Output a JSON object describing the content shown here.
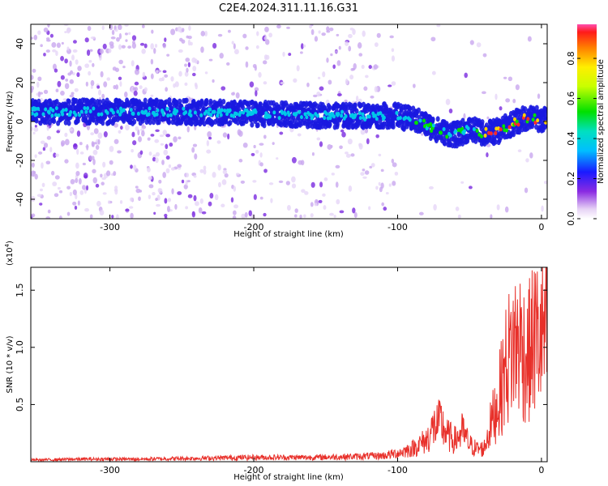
{
  "chart_data": [
    {
      "type": "heatmap",
      "title": "C2E4.2024.311.11.16.G31",
      "xlabel": "Height of straight line (km)",
      "ylabel": "Frequency (Hz)",
      "xlim": [
        -355,
        4
      ],
      "ylim": [
        -50,
        50
      ],
      "x_ticks": [
        -300,
        -200,
        -100,
        0
      ],
      "y_ticks": [
        -40,
        -20,
        0,
        20,
        40
      ],
      "colorbar": {
        "label": "Normalized spectral amplitude",
        "range": [
          0.0,
          0.97
        ],
        "ticks": [
          0.0,
          0.2,
          0.4,
          0.6,
          0.8
        ]
      },
      "ridge": {
        "x": [
          -355,
          -300,
          -250,
          -200,
          -150,
          -100,
          -85,
          -70,
          -60,
          -50,
          -40,
          -30,
          -20,
          -10,
          0
        ],
        "frequency_hz": [
          5,
          5,
          5,
          4,
          3,
          3,
          0,
          -5,
          -7,
          -4,
          -6,
          -5,
          -1,
          2,
          1
        ]
      },
      "grid": false
    },
    {
      "type": "line",
      "xlabel": "Height of straight line (km)",
      "ylabel": "SNR (10 * v/v)",
      "y_multiplier": "(x10",
      "y_multiplier_exp": "4",
      "y_multiplier_close": ")",
      "xlim": [
        -355,
        4
      ],
      "ylim": [
        0,
        1.7
      ],
      "x_ticks": [
        -300,
        -200,
        -100,
        0
      ],
      "y_ticks": [
        0.5,
        1.0,
        1.5
      ],
      "y_tick_labels": [
        "0.5",
        "1.0",
        "1.5"
      ],
      "series": [
        {
          "color": "#e8302a",
          "x": [
            -355,
            -320,
            -280,
            -240,
            -200,
            -160,
            -130,
            -110,
            -100,
            -90,
            -80,
            -75,
            -70,
            -65,
            -60,
            -55,
            -50,
            -45,
            -40,
            -35,
            -30,
            -25,
            -20,
            -15,
            -10,
            -5,
            0,
            4
          ],
          "y": [
            0.02,
            0.03,
            0.03,
            0.04,
            0.05,
            0.05,
            0.06,
            0.07,
            0.1,
            0.15,
            0.25,
            0.4,
            0.45,
            0.3,
            0.25,
            0.35,
            0.2,
            0.15,
            0.15,
            0.45,
            0.7,
            1.1,
            1.35,
            1.4,
            1.2,
            1.45,
            1.45,
            1.5
          ]
        }
      ],
      "grid": false
    }
  ]
}
